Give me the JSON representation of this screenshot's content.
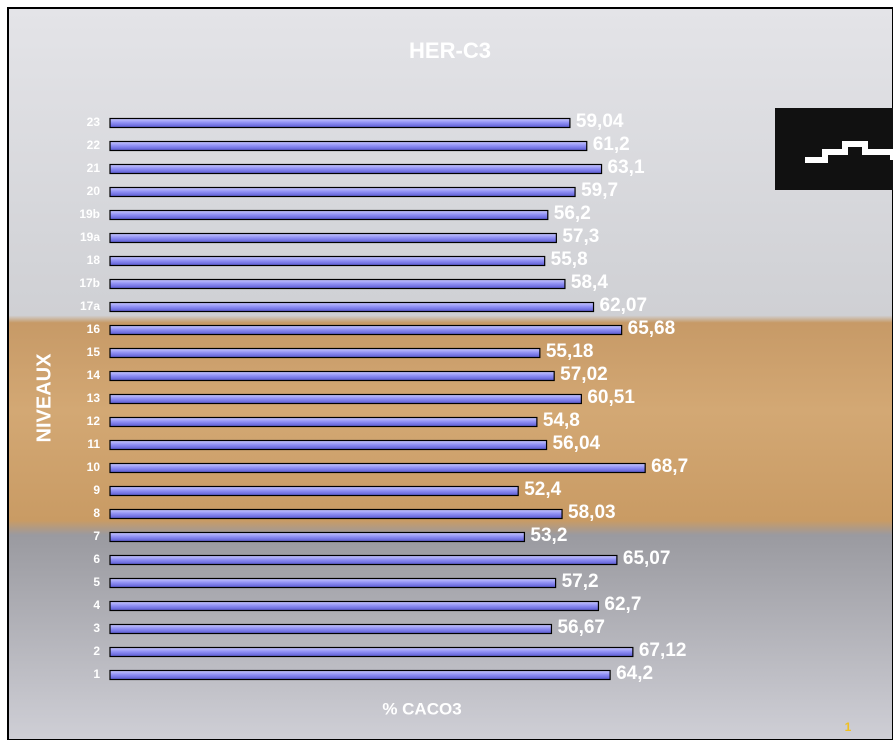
{
  "chart_data": {
    "type": "bar",
    "orientation": "horizontal",
    "title": "HER-C3",
    "x_label": "% CACO3",
    "y_label": "NIVEAUX",
    "categories": [
      "23",
      "22",
      "21",
      "20",
      "19b",
      "19a",
      "18",
      "17b",
      "17a",
      "16",
      "15",
      "14",
      "13",
      "12",
      "11",
      "10",
      "9",
      "8",
      "7",
      "6",
      "5",
      "4",
      "3",
      "2",
      "1"
    ],
    "values": [
      59.04,
      61.2,
      63.1,
      59.7,
      56.2,
      57.3,
      55.8,
      58.4,
      62.07,
      65.68,
      55.18,
      57.02,
      60.51,
      54.8,
      56.04,
      68.7,
      52.4,
      58.03,
      53.2,
      65.07,
      57.2,
      62.7,
      56.67,
      67.12,
      64.2
    ],
    "value_labels": [
      "59,04",
      "61,2",
      "63,1",
      "59,7",
      "56,2",
      "57,3",
      "55,8",
      "58,4",
      "62,07",
      "65,68",
      "55,18",
      "57,02",
      "60,51",
      "54,8",
      "56,04",
      "68,7",
      "52,4",
      "58,03",
      "53,2",
      "65,07",
      "57,2",
      "62,7",
      "56,67",
      "67,12",
      "64,2"
    ],
    "color": "#8c8cf2",
    "xlim": [
      0,
      100
    ]
  },
  "page_number": "1"
}
